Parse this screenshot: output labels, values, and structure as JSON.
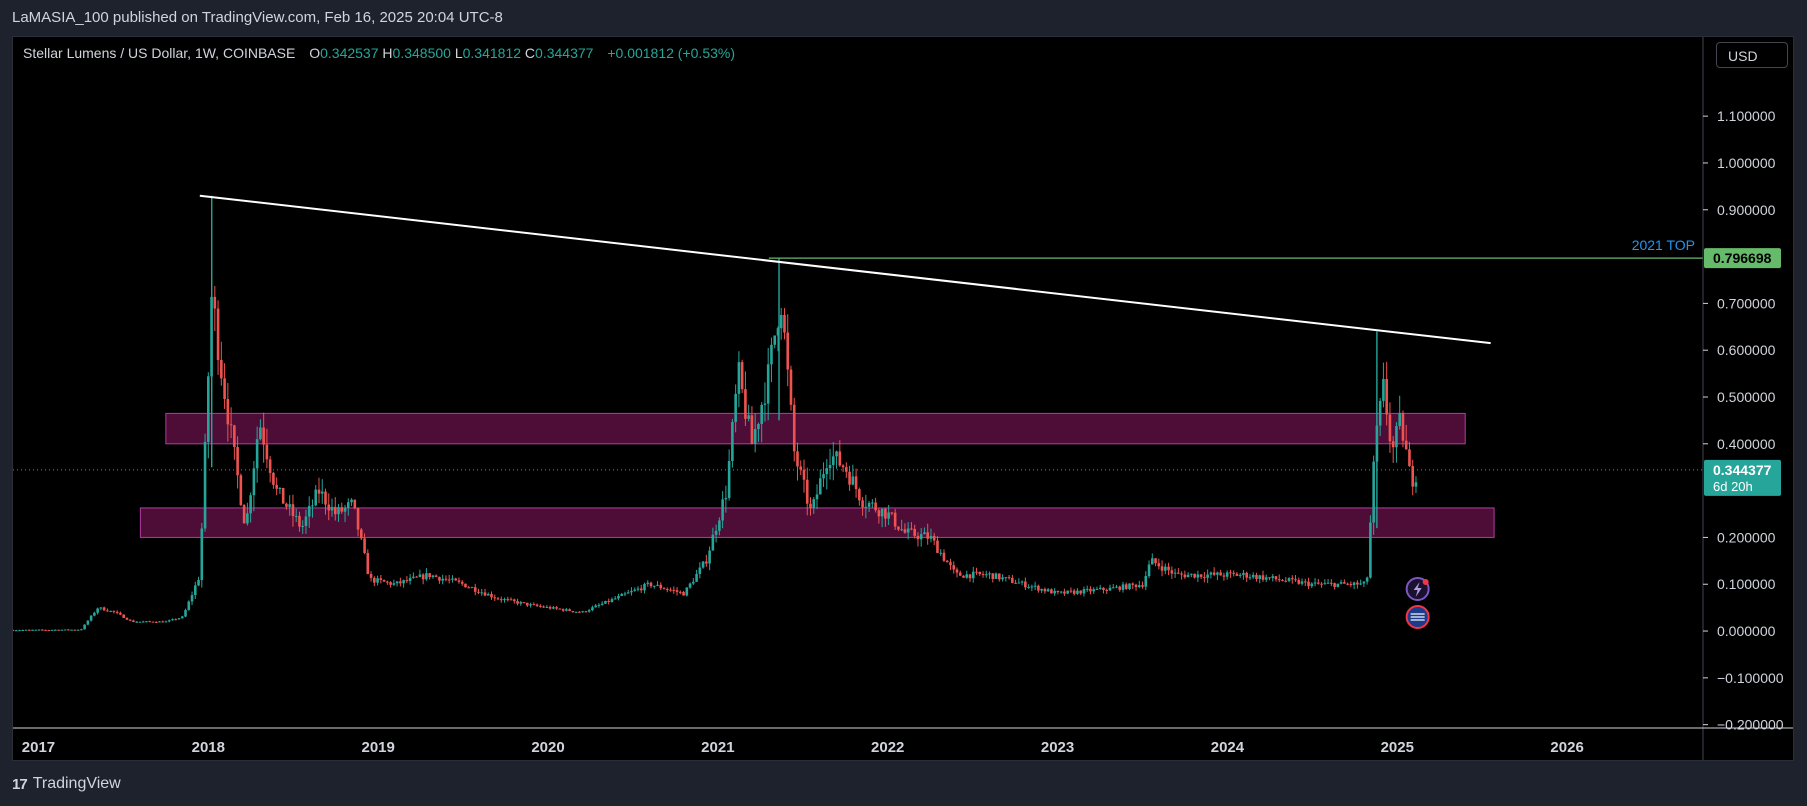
{
  "header": {
    "publisher_line": "LaMASIA_100 published on TradingView.com, Feb 16, 2025 20:04 UTC-8"
  },
  "legend": {
    "symbol": "Stellar Lumens / US Dollar, 1W, COINBASE",
    "open_label": "O",
    "open": "0.342537",
    "high_label": "H",
    "high": "0.348500",
    "low_label": "L",
    "low": "0.341812",
    "close_label": "C",
    "close": "0.344377",
    "change": "+0.001812 (+0.53%)"
  },
  "currency_button": "USD",
  "footer": {
    "brand": "TradingView",
    "logo_text": "17"
  },
  "colors": {
    "background": "#000000",
    "up": "#26a69a",
    "down": "#ef5350",
    "zone_fill": "#5c0f40",
    "zone_border": "#b03da0",
    "trendline": "#ffffff",
    "top_line": "#66bb6a",
    "top_label": "#2196f3",
    "price_badge": "#26a69a"
  },
  "chart_data": {
    "type": "candlestick",
    "title": "Stellar Lumens / US Dollar, 1W, COINBASE",
    "x_axis": {
      "labels": [
        "2017",
        "2018",
        "2019",
        "2020",
        "2021",
        "2022",
        "2023",
        "2024",
        "2025",
        "2026"
      ],
      "range": [
        2016.85,
        2026.8
      ]
    },
    "y_axis": {
      "labels": [
        "1.100000",
        "1.000000",
        "0.900000",
        "0.700000",
        "0.600000",
        "0.500000",
        "0.400000",
        "0.200000",
        "0.100000",
        "0.000000",
        "−0.100000",
        "−0.200000"
      ],
      "values": [
        1.1,
        1.0,
        0.9,
        0.7,
        0.6,
        0.5,
        0.4,
        0.2,
        0.1,
        0.0,
        -0.1,
        -0.2
      ],
      "range": [
        -0.205,
        1.205
      ]
    },
    "price_path": [
      {
        "x": 2016.85,
        "y": 0.002
      },
      {
        "x": 2017.25,
        "y": 0.003
      },
      {
        "x": 2017.35,
        "y": 0.05
      },
      {
        "x": 2017.45,
        "y": 0.04
      },
      {
        "x": 2017.55,
        "y": 0.02
      },
      {
        "x": 2017.75,
        "y": 0.02
      },
      {
        "x": 2017.85,
        "y": 0.03
      },
      {
        "x": 2017.95,
        "y": 0.12
      },
      {
        "x": 2018.02,
        "y": 0.72
      },
      {
        "x": 2018.08,
        "y": 0.55
      },
      {
        "x": 2018.15,
        "y": 0.38
      },
      {
        "x": 2018.22,
        "y": 0.22
      },
      {
        "x": 2018.3,
        "y": 0.45
      },
      {
        "x": 2018.4,
        "y": 0.3
      },
      {
        "x": 2018.55,
        "y": 0.22
      },
      {
        "x": 2018.65,
        "y": 0.3
      },
      {
        "x": 2018.75,
        "y": 0.25
      },
      {
        "x": 2018.85,
        "y": 0.27
      },
      {
        "x": 2018.95,
        "y": 0.11
      },
      {
        "x": 2019.1,
        "y": 0.1
      },
      {
        "x": 2019.3,
        "y": 0.12
      },
      {
        "x": 2019.5,
        "y": 0.1
      },
      {
        "x": 2019.7,
        "y": 0.07
      },
      {
        "x": 2019.9,
        "y": 0.055
      },
      {
        "x": 2020.2,
        "y": 0.04
      },
      {
        "x": 2020.4,
        "y": 0.07
      },
      {
        "x": 2020.6,
        "y": 0.1
      },
      {
        "x": 2020.8,
        "y": 0.08
      },
      {
        "x": 2020.93,
        "y": 0.15
      },
      {
        "x": 2021.05,
        "y": 0.3
      },
      {
        "x": 2021.12,
        "y": 0.55
      },
      {
        "x": 2021.2,
        "y": 0.4
      },
      {
        "x": 2021.3,
        "y": 0.55
      },
      {
        "x": 2021.37,
        "y": 0.72
      },
      {
        "x": 2021.45,
        "y": 0.38
      },
      {
        "x": 2021.55,
        "y": 0.25
      },
      {
        "x": 2021.65,
        "y": 0.38
      },
      {
        "x": 2021.75,
        "y": 0.35
      },
      {
        "x": 2021.85,
        "y": 0.28
      },
      {
        "x": 2022.0,
        "y": 0.25
      },
      {
        "x": 2022.1,
        "y": 0.21
      },
      {
        "x": 2022.25,
        "y": 0.2
      },
      {
        "x": 2022.4,
        "y": 0.12
      },
      {
        "x": 2022.6,
        "y": 0.12
      },
      {
        "x": 2022.8,
        "y": 0.1
      },
      {
        "x": 2023.0,
        "y": 0.08
      },
      {
        "x": 2023.3,
        "y": 0.09
      },
      {
        "x": 2023.5,
        "y": 0.1
      },
      {
        "x": 2023.55,
        "y": 0.15
      },
      {
        "x": 2023.7,
        "y": 0.12
      },
      {
        "x": 2023.9,
        "y": 0.12
      },
      {
        "x": 2024.1,
        "y": 0.12
      },
      {
        "x": 2024.3,
        "y": 0.11
      },
      {
        "x": 2024.5,
        "y": 0.1
      },
      {
        "x": 2024.7,
        "y": 0.1
      },
      {
        "x": 2024.82,
        "y": 0.1
      },
      {
        "x": 2024.87,
        "y": 0.4
      },
      {
        "x": 2024.92,
        "y": 0.52
      },
      {
        "x": 2024.97,
        "y": 0.38
      },
      {
        "x": 2025.02,
        "y": 0.45
      },
      {
        "x": 2025.08,
        "y": 0.32
      },
      {
        "x": 2025.12,
        "y": 0.344
      }
    ],
    "spikes": [
      {
        "x": 2018.02,
        "high": 0.93,
        "low": 0.35
      },
      {
        "x": 2021.36,
        "high": 0.797,
        "low": 0.45
      },
      {
        "x": 2024.88,
        "high": 0.64,
        "low": 0.22
      }
    ],
    "trendline": {
      "x1": 2017.95,
      "y1": 0.93,
      "x2": 2025.55,
      "y2": 0.615
    },
    "horizontal_line": {
      "x1": 2021.3,
      "x2": 2026.8,
      "y": 0.796698,
      "label": "2021 TOP",
      "price_label": "0.796698"
    },
    "zones": [
      {
        "x1": 2017.75,
        "x2": 2025.4,
        "low": 0.4,
        "high": 0.465
      },
      {
        "x1": 2017.6,
        "x2": 2025.57,
        "low": 0.2,
        "high": 0.263
      }
    ],
    "current_price": {
      "value": 0.344377,
      "label": "0.344377",
      "countdown": "6d 20h"
    }
  }
}
